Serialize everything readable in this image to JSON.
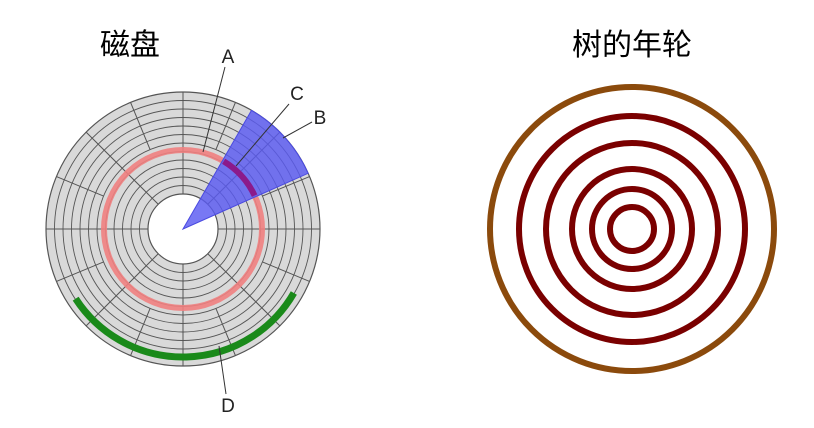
{
  "panels": {
    "disk": {
      "title": "磁盘",
      "labels": {
        "a": "A",
        "b": "B",
        "c": "C",
        "d": "D"
      },
      "colors": {
        "platter": "#d9d9d9",
        "grid": "#555555",
        "track": "#f08080",
        "sector": "#6a6af5",
        "cluster": "#1a8a1a",
        "overlap": "#8b1a8b"
      }
    },
    "tree": {
      "title": "树的年轮",
      "colors": {
        "bark": "#8b4a0c",
        "ring": "#7a0000"
      }
    }
  }
}
